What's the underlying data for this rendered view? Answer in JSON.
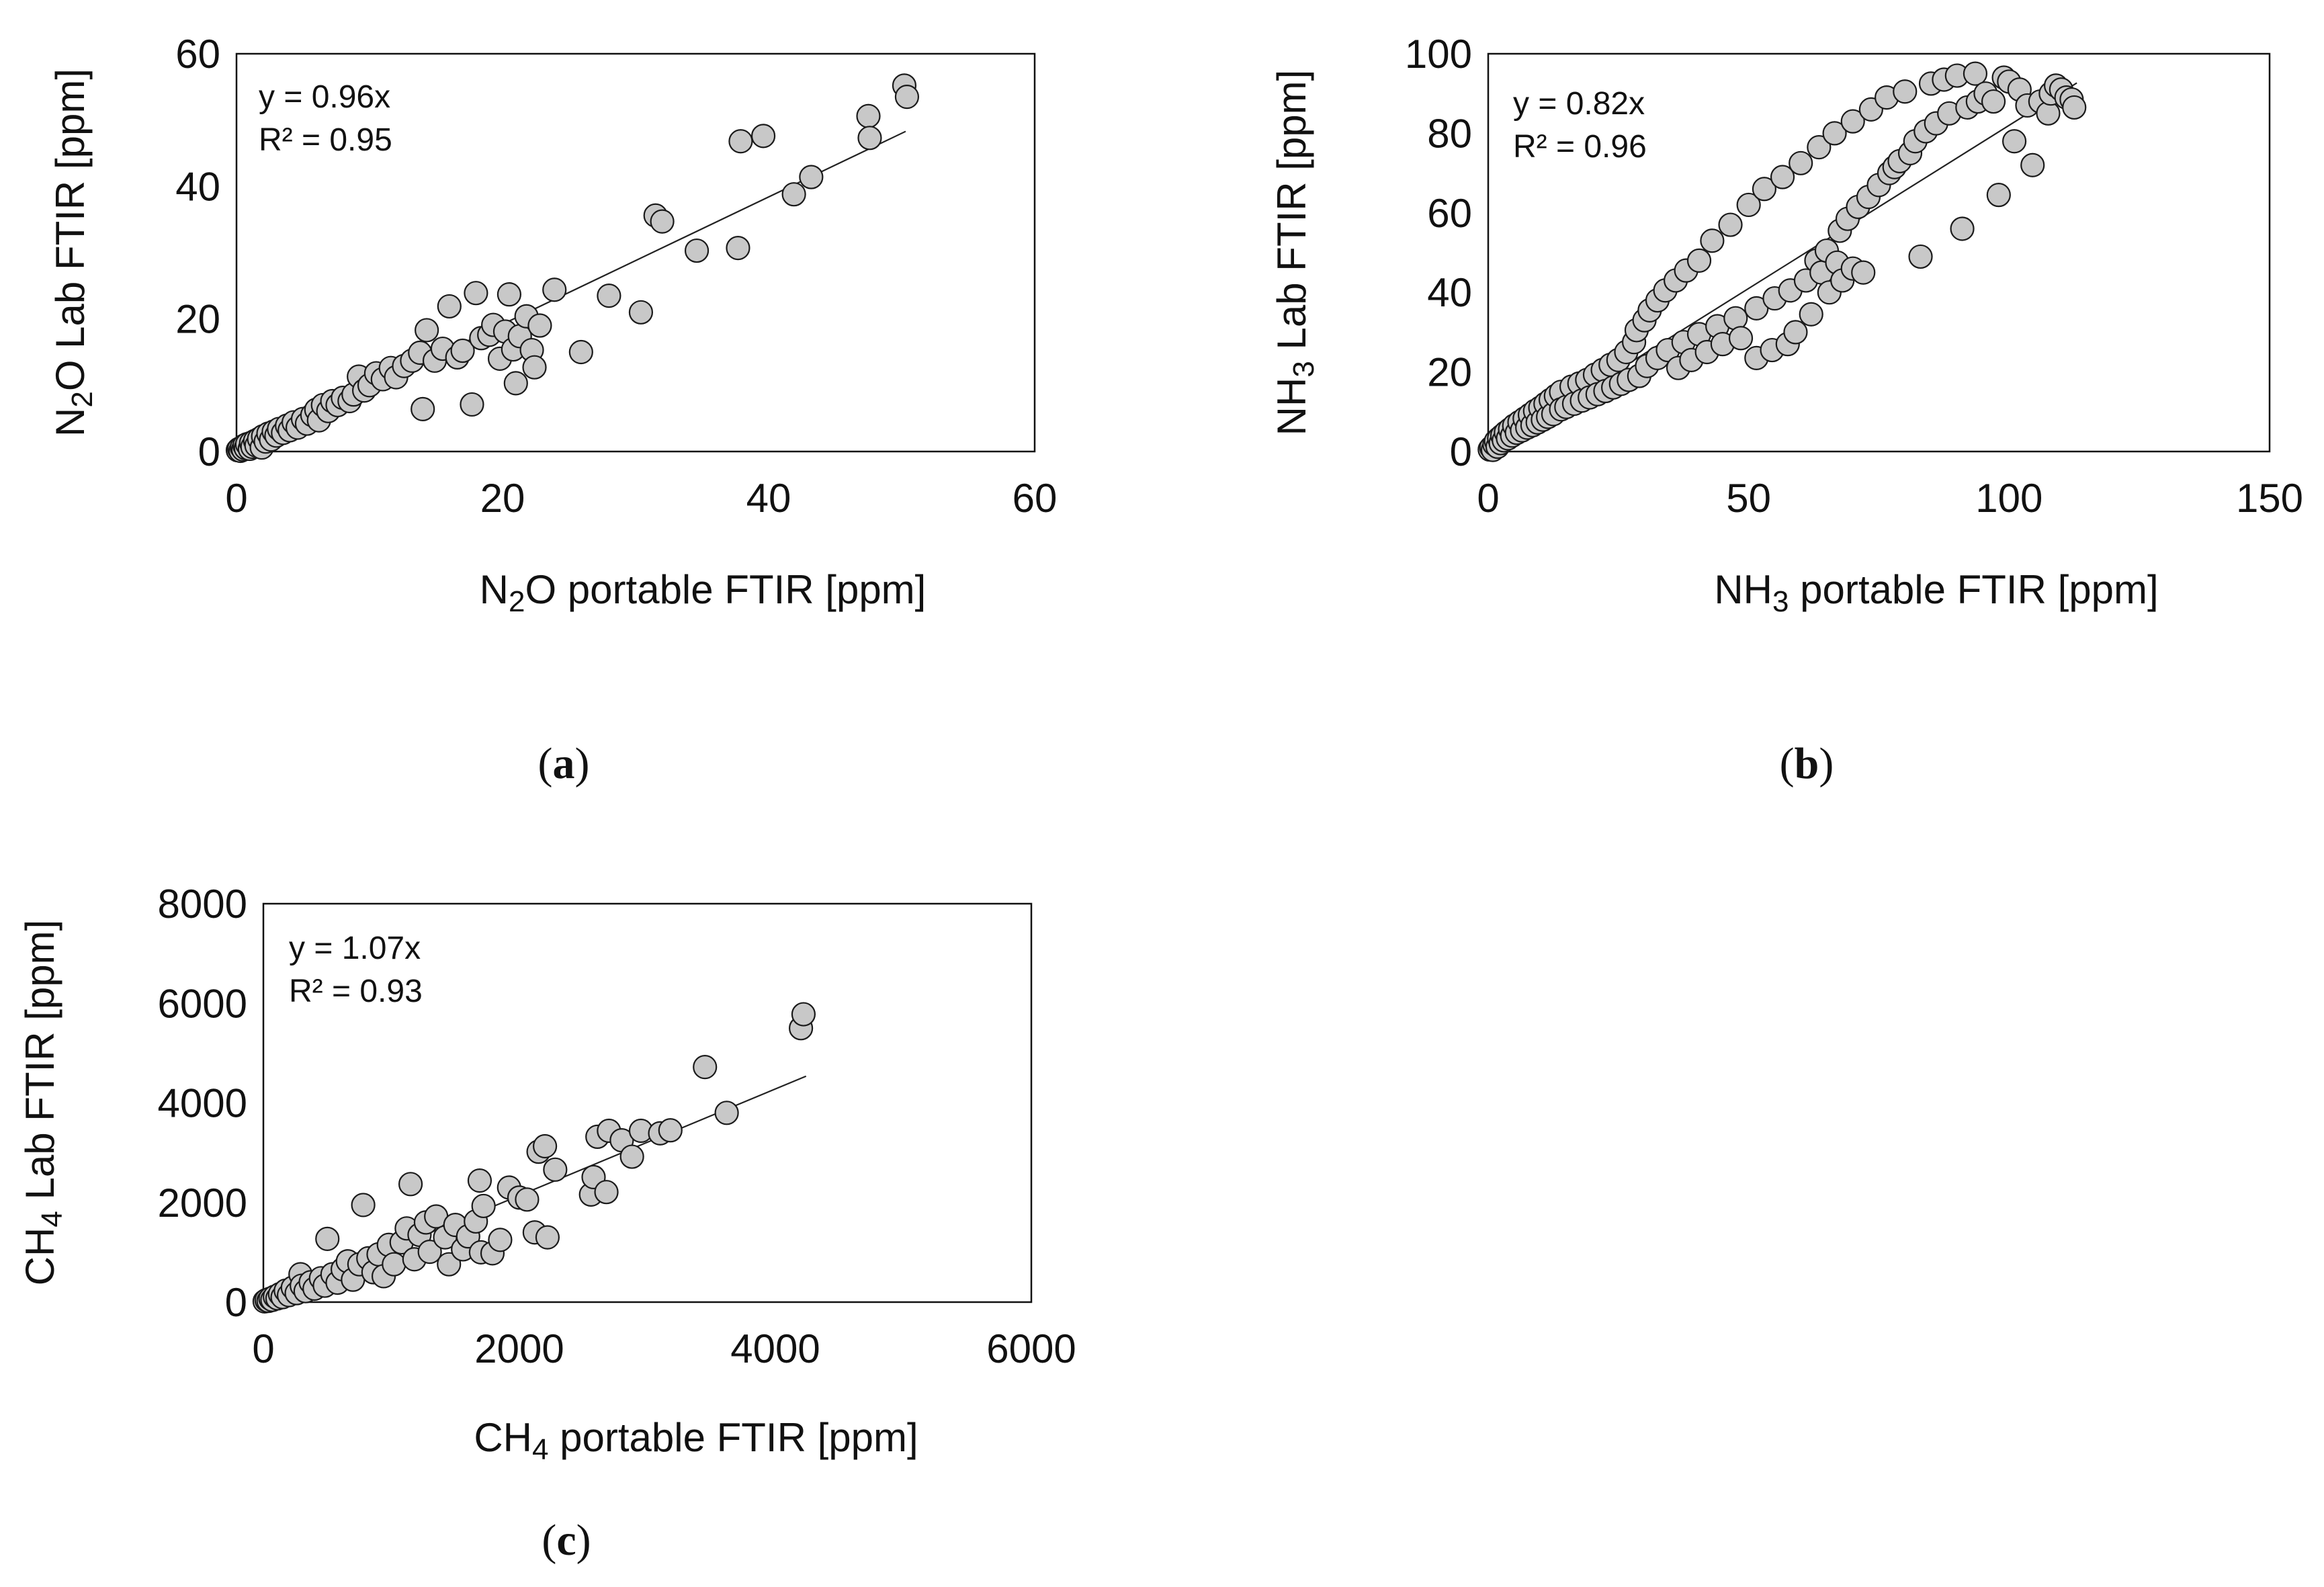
{
  "chart_data": [
    {
      "type": "scatter",
      "panel_label": "(a)",
      "caption": {
        "open": "(",
        "letter": "a",
        "close": ")"
      },
      "xlabel": {
        "pre": "N",
        "sub": "2",
        "post": "O portable FTIR [ppm]"
      },
      "ylabel": {
        "pre": "N",
        "sub": "2",
        "post": "O Lab FTIR [ppm]"
      },
      "xlim": [
        0,
        60
      ],
      "ylim": [
        0,
        60
      ],
      "xticks": [
        0,
        20,
        40,
        60
      ],
      "yticks": [
        0,
        20,
        40,
        60
      ],
      "equation": "y = 0.96x",
      "r2": "R² = 0.95",
      "trendline": {
        "slope": 0.96,
        "x": [
          0,
          50.3
        ]
      },
      "marker_color": "#c8c8c8",
      "points": [
        [
          0.1,
          0.2
        ],
        [
          0.2,
          0.4
        ],
        [
          0.3,
          0.1
        ],
        [
          0.4,
          0.6
        ],
        [
          0.5,
          0.3
        ],
        [
          0.6,
          0.9
        ],
        [
          0.7,
          0.5
        ],
        [
          0.8,
          1.1
        ],
        [
          1.0,
          0.4
        ],
        [
          1.1,
          1.3
        ],
        [
          1.2,
          0.7
        ],
        [
          1.4,
          1.6
        ],
        [
          1.5,
          0.9
        ],
        [
          1.7,
          1.9
        ],
        [
          1.9,
          0.6
        ],
        [
          2.0,
          2.3
        ],
        [
          2.2,
          1.5
        ],
        [
          2.4,
          2.7
        ],
        [
          2.6,
          1.8
        ],
        [
          2.8,
          3.0
        ],
        [
          3.0,
          2.4
        ],
        [
          3.2,
          3.4
        ],
        [
          3.5,
          2.8
        ],
        [
          3.8,
          3.9
        ],
        [
          4.0,
          3.2
        ],
        [
          4.3,
          4.4
        ],
        [
          4.6,
          3.6
        ],
        [
          5.0,
          4.9
        ],
        [
          5.3,
          4.2
        ],
        [
          5.7,
          5.5
        ],
        [
          6.0,
          6.3
        ],
        [
          6.2,
          4.7
        ],
        [
          6.5,
          7.0
        ],
        [
          6.9,
          6.1
        ],
        [
          7.2,
          7.6
        ],
        [
          7.6,
          7.0
        ],
        [
          8.0,
          8.1
        ],
        [
          8.5,
          7.6
        ],
        [
          8.8,
          8.6
        ],
        [
          9.2,
          11.3
        ],
        [
          9.6,
          9.2
        ],
        [
          10.0,
          10.0
        ],
        [
          10.5,
          11.8
        ],
        [
          11.0,
          10.9
        ],
        [
          11.6,
          12.6
        ],
        [
          12.0,
          11.2
        ],
        [
          12.6,
          12.9
        ],
        [
          13.2,
          13.7
        ],
        [
          13.8,
          14.9
        ],
        [
          14.0,
          6.4
        ],
        [
          14.3,
          18.3
        ],
        [
          14.9,
          13.7
        ],
        [
          15.5,
          15.5
        ],
        [
          16.0,
          21.9
        ],
        [
          16.6,
          14.2
        ],
        [
          17.0,
          15.2
        ],
        [
          17.7,
          7.1
        ],
        [
          18.0,
          23.9
        ],
        [
          18.4,
          17.1
        ],
        [
          19.0,
          17.6
        ],
        [
          19.3,
          19.1
        ],
        [
          19.8,
          14.0
        ],
        [
          20.2,
          18.1
        ],
        [
          20.5,
          23.7
        ],
        [
          20.8,
          15.4
        ],
        [
          21.0,
          10.3
        ],
        [
          21.3,
          17.4
        ],
        [
          21.8,
          20.4
        ],
        [
          22.2,
          15.3
        ],
        [
          22.4,
          12.7
        ],
        [
          22.8,
          19.0
        ],
        [
          23.9,
          24.4
        ],
        [
          25.9,
          15.0
        ],
        [
          28.0,
          23.5
        ],
        [
          30.4,
          21.0
        ],
        [
          31.5,
          35.6
        ],
        [
          32.0,
          34.7
        ],
        [
          34.6,
          30.3
        ],
        [
          37.7,
          30.7
        ],
        [
          37.9,
          46.8
        ],
        [
          39.6,
          47.6
        ],
        [
          41.9,
          38.8
        ],
        [
          43.2,
          41.4
        ],
        [
          47.5,
          50.6
        ],
        [
          47.6,
          47.3
        ],
        [
          50.2,
          55.2
        ],
        [
          50.4,
          53.5
        ]
      ]
    },
    {
      "type": "scatter",
      "panel_label": "(b)",
      "caption": {
        "open": "(",
        "letter": "b",
        "close": ")"
      },
      "xlabel": {
        "pre": "NH",
        "sub": "3",
        "post": " portable FTIR [ppm]"
      },
      "ylabel": {
        "pre": "NH",
        "sub": "3",
        "post": " Lab FTIR [ppm]"
      },
      "xlim": [
        0,
        150
      ],
      "ylim": [
        0,
        100
      ],
      "xticks": [
        0,
        50,
        100,
        150
      ],
      "yticks": [
        0,
        20,
        40,
        60,
        80,
        100
      ],
      "equation": "y = 0.82x",
      "r2": "R² = 0.96",
      "trendline": {
        "slope": 0.82,
        "x": [
          0,
          113
        ]
      },
      "marker_color": "#c8c8c8",
      "points": [
        [
          0.3,
          0.5
        ],
        [
          0.6,
          1.0
        ],
        [
          0.9,
          0.4
        ],
        [
          1.2,
          1.8
        ],
        [
          1.5,
          2.6
        ],
        [
          1.8,
          1.2
        ],
        [
          2.1,
          3.3
        ],
        [
          2.4,
          2.1
        ],
        [
          2.7,
          4.0
        ],
        [
          3.0,
          2.8
        ],
        [
          3.4,
          4.8
        ],
        [
          3.8,
          3.3
        ],
        [
          4.2,
          5.6
        ],
        [
          4.6,
          4.0
        ],
        [
          5.0,
          6.5
        ],
        [
          5.5,
          4.7
        ],
        [
          6.0,
          7.4
        ],
        [
          6.5,
          5.3
        ],
        [
          7.0,
          8.3
        ],
        [
          7.5,
          6.0
        ],
        [
          8.0,
          9.2
        ],
        [
          8.5,
          6.6
        ],
        [
          9.0,
          10.2
        ],
        [
          9.5,
          7.3
        ],
        [
          10.0,
          11.0
        ],
        [
          10.5,
          8.0
        ],
        [
          11.0,
          12.0
        ],
        [
          11.5,
          8.7
        ],
        [
          12.0,
          13.0
        ],
        [
          12.5,
          9.4
        ],
        [
          13.0,
          14.0
        ],
        [
          14.0,
          15.0
        ],
        [
          14.0,
          10.6
        ],
        [
          15.0,
          11.2
        ],
        [
          16.0,
          16.3
        ],
        [
          16.5,
          12.0
        ],
        [
          17.5,
          17.1
        ],
        [
          18.0,
          12.8
        ],
        [
          19.0,
          18.0
        ],
        [
          19.5,
          13.6
        ],
        [
          20.5,
          19.3
        ],
        [
          21.0,
          14.4
        ],
        [
          22.0,
          20.5
        ],
        [
          22.5,
          15.2
        ],
        [
          23.5,
          21.8
        ],
        [
          24.0,
          16.1
        ],
        [
          25.0,
          23.0
        ],
        [
          25.5,
          17.0
        ],
        [
          26.5,
          25.0
        ],
        [
          27.0,
          18.0
        ],
        [
          28.0,
          27.5
        ],
        [
          28.5,
          30.5
        ],
        [
          29.0,
          19.0
        ],
        [
          30.0,
          33.0
        ],
        [
          30.5,
          21.5
        ],
        [
          31.0,
          35.5
        ],
        [
          32.5,
          23.5
        ],
        [
          32.5,
          38.0
        ],
        [
          34.0,
          40.5
        ],
        [
          34.5,
          25.5
        ],
        [
          36.0,
          43.0
        ],
        [
          36.5,
          21.0
        ],
        [
          37.5,
          27.5
        ],
        [
          38.0,
          45.5
        ],
        [
          39.0,
          23.0
        ],
        [
          40.5,
          29.5
        ],
        [
          40.5,
          48.0
        ],
        [
          42.0,
          25.0
        ],
        [
          43.0,
          53.0
        ],
        [
          44.0,
          31.5
        ],
        [
          45.0,
          27.0
        ],
        [
          46.5,
          57.0
        ],
        [
          47.5,
          33.5
        ],
        [
          48.5,
          28.5
        ],
        [
          50.0,
          62.0
        ],
        [
          51.5,
          23.5
        ],
        [
          51.5,
          36.0
        ],
        [
          53.0,
          66.0
        ],
        [
          54.5,
          25.5
        ],
        [
          55.0,
          38.5
        ],
        [
          56.5,
          69.0
        ],
        [
          57.5,
          27.0
        ],
        [
          58.0,
          40.5
        ],
        [
          59.0,
          30.0
        ],
        [
          60.0,
          72.5
        ],
        [
          61.0,
          43.0
        ],
        [
          62.0,
          34.5
        ],
        [
          63.0,
          48.0
        ],
        [
          63.5,
          76.5
        ],
        [
          64.0,
          45.0
        ],
        [
          65.0,
          50.5
        ],
        [
          65.5,
          40.0
        ],
        [
          66.5,
          80.0
        ],
        [
          67.0,
          47.5
        ],
        [
          67.5,
          55.5
        ],
        [
          68.0,
          43.0
        ],
        [
          69.0,
          58.5
        ],
        [
          70.0,
          83.0
        ],
        [
          70.0,
          46.0
        ],
        [
          71.0,
          61.5
        ],
        [
          72.0,
          45.0
        ],
        [
          73.0,
          64.0
        ],
        [
          73.5,
          86.0
        ],
        [
          75.0,
          67.0
        ],
        [
          76.5,
          89.0
        ],
        [
          77.0,
          70.0
        ],
        [
          78.0,
          71.5
        ],
        [
          79.0,
          73.0
        ],
        [
          80.0,
          90.5
        ],
        [
          81.0,
          75.0
        ],
        [
          82.0,
          78.0
        ],
        [
          83.0,
          49.0
        ],
        [
          84.0,
          80.5
        ],
        [
          85.0,
          92.5
        ],
        [
          86.0,
          82.5
        ],
        [
          87.5,
          93.5
        ],
        [
          88.5,
          85.0
        ],
        [
          90.0,
          94.5
        ],
        [
          91.0,
          56.0
        ],
        [
          92.0,
          86.5
        ],
        [
          93.5,
          95.0
        ],
        [
          94.0,
          88.0
        ],
        [
          95.5,
          90.0
        ],
        [
          97.0,
          88.0
        ],
        [
          98.0,
          64.5
        ],
        [
          99.0,
          94.0
        ],
        [
          100.0,
          93.0
        ],
        [
          101.0,
          78.0
        ],
        [
          102.0,
          91.0
        ],
        [
          103.5,
          87.0
        ],
        [
          104.5,
          72.0
        ],
        [
          106.0,
          88.0
        ],
        [
          107.5,
          85.0
        ],
        [
          108.0,
          90.0
        ],
        [
          109.0,
          92.0
        ],
        [
          110.0,
          91.0
        ],
        [
          111.0,
          89.0
        ],
        [
          112.0,
          88.5
        ],
        [
          112.5,
          86.5
        ]
      ]
    },
    {
      "type": "scatter",
      "panel_label": "(c)",
      "caption": {
        "open": "(",
        "letter": "c",
        "close": ")"
      },
      "xlabel": {
        "pre": "CH",
        "sub": "4",
        "post": " portable FTIR [ppm]"
      },
      "ylabel": {
        "pre": "CH",
        "sub": "4",
        "post": " Lab FTIR [ppm]"
      },
      "xlim": [
        0,
        6000
      ],
      "ylim": [
        0,
        8000
      ],
      "xticks": [
        0,
        2000,
        4000,
        6000
      ],
      "yticks": [
        0,
        2000,
        4000,
        6000,
        8000
      ],
      "equation": "y = 1.07x",
      "r2": "R² = 0.93",
      "trendline": {
        "slope": 1.07,
        "x": [
          0,
          4240
        ]
      },
      "marker_color": "#c8c8c8",
      "points": [
        [
          10,
          15
        ],
        [
          25,
          40
        ],
        [
          40,
          25
        ],
        [
          55,
          70
        ],
        [
          70,
          45
        ],
        [
          90,
          110
        ],
        [
          110,
          75
        ],
        [
          130,
          160
        ],
        [
          150,
          100
        ],
        [
          175,
          230
        ],
        [
          200,
          140
        ],
        [
          230,
          290
        ],
        [
          260,
          180
        ],
        [
          290,
          560
        ],
        [
          300,
          330
        ],
        [
          330,
          220
        ],
        [
          370,
          400
        ],
        [
          400,
          270
        ],
        [
          450,
          480
        ],
        [
          480,
          330
        ],
        [
          500,
          1270
        ],
        [
          540,
          560
        ],
        [
          580,
          390
        ],
        [
          620,
          660
        ],
        [
          660,
          820
        ],
        [
          700,
          450
        ],
        [
          750,
          760
        ],
        [
          780,
          1950
        ],
        [
          820,
          880
        ],
        [
          860,
          600
        ],
        [
          900,
          960
        ],
        [
          940,
          520
        ],
        [
          980,
          1150
        ],
        [
          1020,
          760
        ],
        [
          1080,
          1200
        ],
        [
          1120,
          1480
        ],
        [
          1150,
          2370
        ],
        [
          1180,
          860
        ],
        [
          1220,
          1350
        ],
        [
          1270,
          1600
        ],
        [
          1300,
          1010
        ],
        [
          1350,
          1720
        ],
        [
          1420,
          1300
        ],
        [
          1450,
          760
        ],
        [
          1500,
          1550
        ],
        [
          1560,
          1060
        ],
        [
          1600,
          1320
        ],
        [
          1660,
          1620
        ],
        [
          1700,
          1000
        ],
        [
          1690,
          2440
        ],
        [
          1720,
          1930
        ],
        [
          1790,
          980
        ],
        [
          1850,
          1250
        ],
        [
          1920,
          2300
        ],
        [
          2000,
          2100
        ],
        [
          2060,
          2060
        ],
        [
          2120,
          1400
        ],
        [
          2150,
          3020
        ],
        [
          2200,
          3130
        ],
        [
          2220,
          1300
        ],
        [
          2280,
          2660
        ],
        [
          2560,
          2160
        ],
        [
          2580,
          2510
        ],
        [
          2610,
          3320
        ],
        [
          2680,
          2210
        ],
        [
          2700,
          3440
        ],
        [
          2800,
          3250
        ],
        [
          2880,
          2920
        ],
        [
          2950,
          3440
        ],
        [
          3100,
          3390
        ],
        [
          3180,
          3450
        ],
        [
          3450,
          4720
        ],
        [
          3620,
          3800
        ],
        [
          4200,
          5500
        ],
        [
          4220,
          5780
        ]
      ]
    }
  ]
}
